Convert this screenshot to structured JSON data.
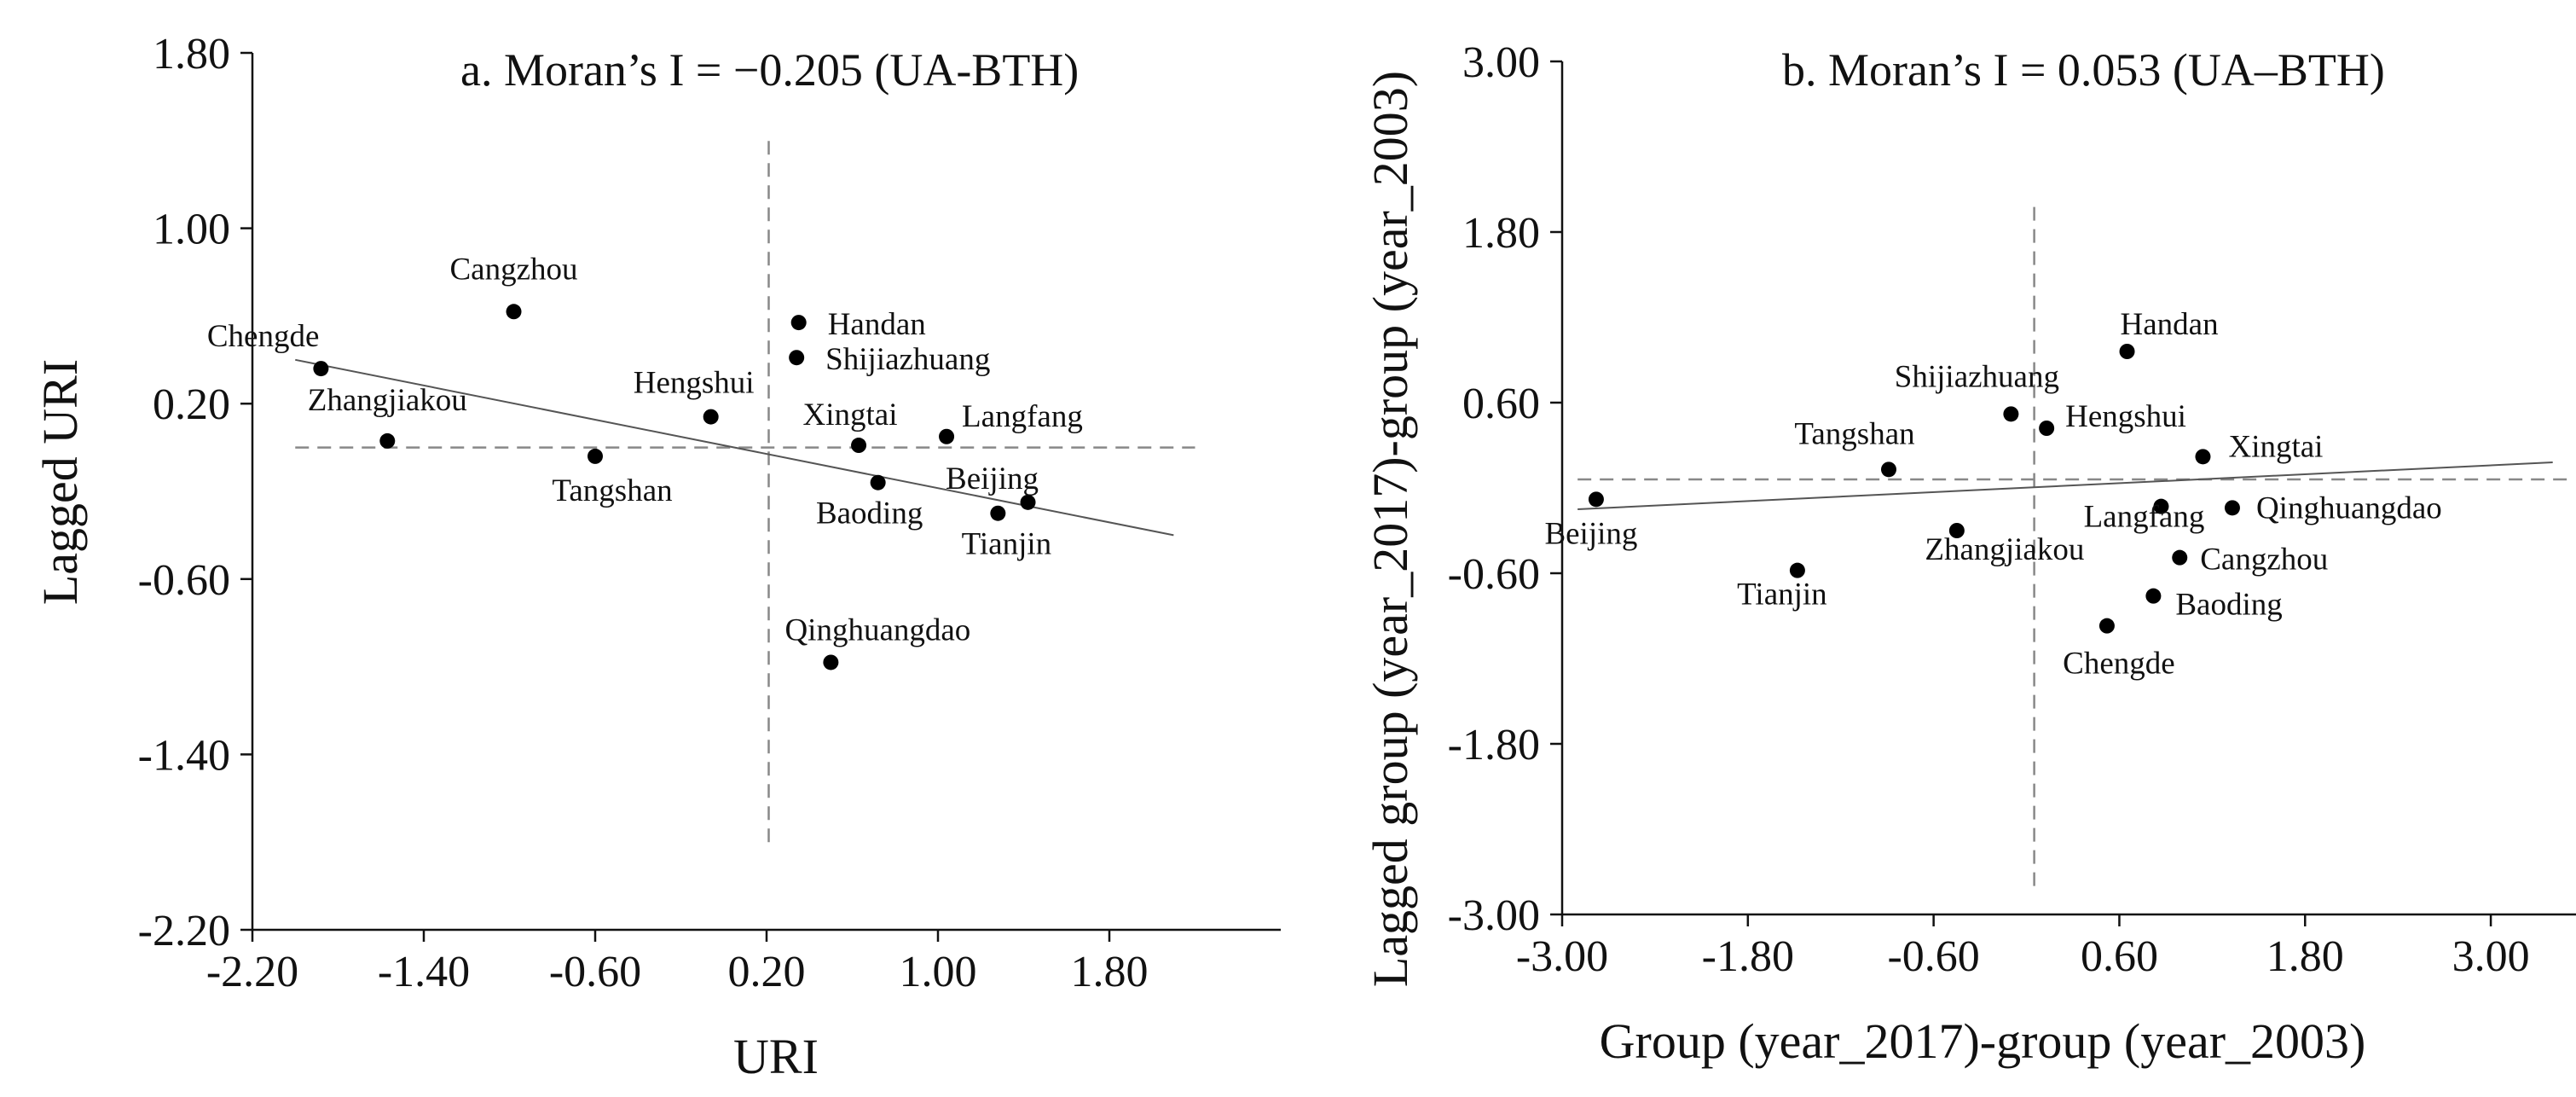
{
  "colors": {
    "axis": "#111111",
    "point": "#000000",
    "reference": "#888888",
    "fit": "#555555"
  },
  "chart_data": [
    {
      "type": "scatter",
      "title": "a. Moran’s I = −0.205   (UA-BTH)",
      "xlabel": "URI",
      "ylabel": "Lagged URI",
      "xlim": [
        -2.2,
        2.6
      ],
      "ylim": [
        -2.2,
        1.8
      ],
      "xticks": [
        -2.2,
        -1.4,
        -0.6,
        0.2,
        1.0,
        1.8
      ],
      "xtick_labels": [
        "-2.20",
        "-1.40",
        "-0.60",
        "0.20",
        "1.00",
        "1.80"
      ],
      "yticks": [
        1.8,
        1.0,
        0.2,
        -0.6,
        -1.4,
        -2.2
      ],
      "ytick_labels": [
        "1.80",
        "1.00",
        "0.20",
        "-0.60",
        "-1.40",
        "-2.20"
      ],
      "reference_lines": {
        "x": 0.21,
        "y": 0.0,
        "x_span": [
          -2.0,
          2.2
        ],
        "y_span": [
          -1.8,
          1.4
        ]
      },
      "fit_line": {
        "x": [
          -2.0,
          2.1
        ],
        "y": [
          0.4,
          -0.4
        ]
      },
      "points": [
        {
          "name": "Chengde",
          "x": -1.88,
          "y": 0.36
        },
        {
          "name": "Cangzhou",
          "x": -0.98,
          "y": 0.62
        },
        {
          "name": "Zhangjiakou",
          "x": -1.57,
          "y": 0.03
        },
        {
          "name": "Tangshan",
          "x": -0.6,
          "y": -0.04
        },
        {
          "name": "Hengshui",
          "x": -0.06,
          "y": 0.14
        },
        {
          "name": "Handan",
          "x": 0.35,
          "y": 0.57
        },
        {
          "name": "Shijiazhuang",
          "x": 0.34,
          "y": 0.41
        },
        {
          "name": "Xingtai",
          "x": 0.63,
          "y": 0.01
        },
        {
          "name": "Langfang",
          "x": 1.04,
          "y": 0.05
        },
        {
          "name": "Baoding",
          "x": 0.72,
          "y": -0.16
        },
        {
          "name": "Beijing",
          "x": 1.42,
          "y": -0.25
        },
        {
          "name": "Tianjin",
          "x": 1.28,
          "y": -0.3
        },
        {
          "name": "Qinghuangdao",
          "x": 0.5,
          "y": -0.98
        }
      ]
    },
    {
      "type": "scatter",
      "title": "b. Moran’s I = 0.053   (UA–BTH)",
      "xlabel": "Group (year_2017)-group (year_2003)",
      "ylabel": "Lagged group (year_2017)-group (year_2003)",
      "xlim": [
        -3.0,
        3.6
      ],
      "ylim": [
        -3.0,
        3.0
      ],
      "xticks": [
        -3.0,
        -1.8,
        -0.6,
        0.6,
        1.8,
        3.0
      ],
      "xtick_labels": [
        "-3.00",
        "-1.80",
        "-0.60",
        "0.60",
        "1.80",
        "3.00"
      ],
      "yticks": [
        3.0,
        1.8,
        0.6,
        -0.6,
        -1.8,
        -3.0
      ],
      "ytick_labels": [
        "3.00",
        "1.80",
        "0.60",
        "-0.60",
        "-1.80",
        "-3.00"
      ],
      "reference_lines": {
        "x": 0.05,
        "y": 0.06,
        "x_span": [
          -2.9,
          3.5
        ],
        "y_span": [
          -2.8,
          2.0
        ]
      },
      "fit_line": {
        "x": [
          -2.9,
          3.4
        ],
        "y": [
          -0.15,
          0.18
        ]
      },
      "points": [
        {
          "name": "Beijing",
          "x": -2.78,
          "y": -0.08
        },
        {
          "name": "Tianjin",
          "x": -1.48,
          "y": -0.58
        },
        {
          "name": "Tangshan",
          "x": -0.89,
          "y": 0.13
        },
        {
          "name": "Zhangjiakou",
          "x": -0.45,
          "y": -0.3
        },
        {
          "name": "Shijiazhuang",
          "x": -0.1,
          "y": 0.52
        },
        {
          "name": "Hengshui",
          "x": 0.13,
          "y": 0.42
        },
        {
          "name": "Handan",
          "x": 0.65,
          "y": 0.96
        },
        {
          "name": "Langfang",
          "x": 0.87,
          "y": -0.13
        },
        {
          "name": "Xingtai",
          "x": 1.14,
          "y": 0.22
        },
        {
          "name": "Qinghuangdao",
          "x": 1.33,
          "y": -0.14
        },
        {
          "name": "Cangzhou",
          "x": 0.99,
          "y": -0.49
        },
        {
          "name": "Baoding",
          "x": 0.82,
          "y": -0.76
        },
        {
          "name": "Chengde",
          "x": 0.52,
          "y": -0.97
        }
      ]
    }
  ]
}
